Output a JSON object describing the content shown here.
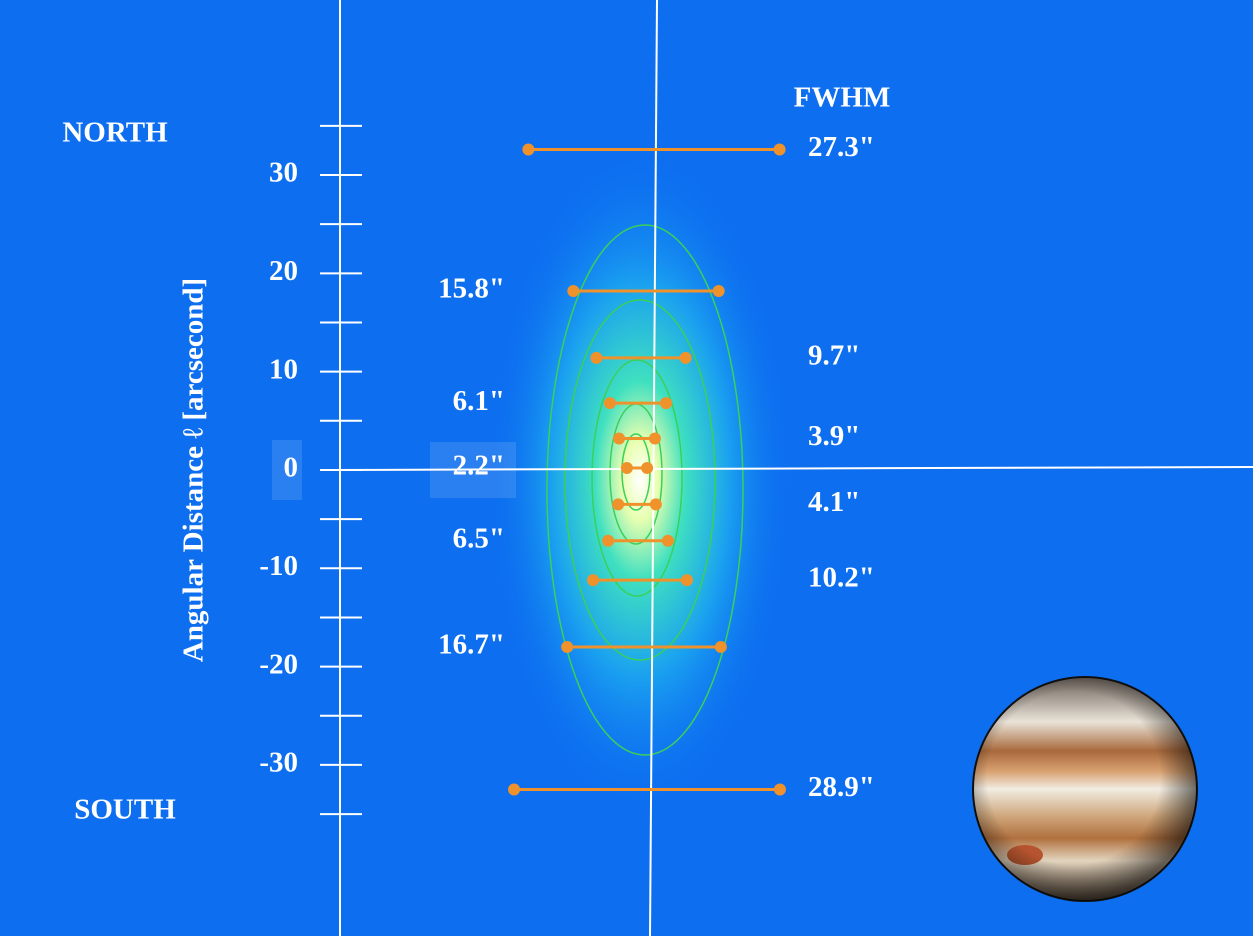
{
  "chart_data": {
    "type": "fwhm",
    "ylabel": "Angular Distance ℓ [arcsecond]",
    "north_label": "NORTH",
    "south_label": "SOUTH",
    "fwhm_label": "FWHM",
    "ylim": [
      -47.4,
      47.8
    ],
    "yticks": [
      30,
      20,
      10,
      0,
      -10,
      -20,
      -30
    ],
    "minor_yticks": [
      35,
      25,
      15,
      5,
      -5,
      -15,
      -25,
      -35
    ],
    "positions": [
      32.6,
      18.2,
      11.4,
      6.8,
      3.2,
      0.2,
      -3.5,
      -7.2,
      -11.2,
      -18.0,
      -32.5
    ],
    "values": [
      27.3,
      15.8,
      9.7,
      6.1,
      3.9,
      2.2,
      4.1,
      6.5,
      10.2,
      16.7,
      28.9
    ],
    "value_labels": [
      "27.3\"",
      "15.8\"",
      "9.7\"",
      "6.1\"",
      "3.9\"",
      "2.2\"",
      "4.1\"",
      "6.5\"",
      "10.2\"",
      "16.7\"",
      "28.9\""
    ],
    "color": "#f0922c"
  }
}
